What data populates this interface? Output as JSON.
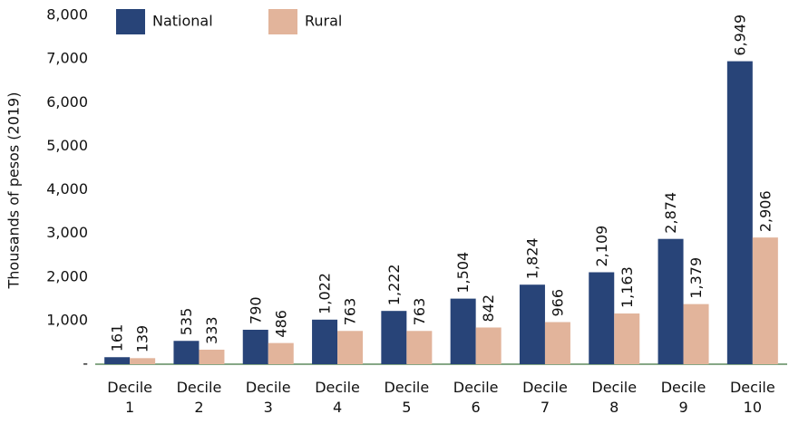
{
  "chart_data": {
    "type": "bar",
    "ylabel": "Thousands of pesos (2019)",
    "categories": [
      "Decile 1",
      "Decile 2",
      "Decile 3",
      "Decile 4",
      "Decile 5",
      "Decile 6",
      "Decile 7",
      "Decile 8",
      "Decile 9",
      "Decile 10"
    ],
    "series": [
      {
        "name": "National",
        "color": "#284478",
        "values": [
          161,
          535,
          790,
          1022,
          1222,
          1504,
          1824,
          2109,
          2874,
          6949
        ],
        "value_labels": [
          "161",
          "535",
          "790",
          "1,022",
          "1,222",
          "1,504",
          "1,824",
          "2,109",
          "2,874",
          "6,949"
        ]
      },
      {
        "name": "Rural",
        "color": "#e2b49b",
        "values": [
          139,
          333,
          486,
          763,
          763,
          842,
          966,
          1163,
          1379,
          2906
        ],
        "value_labels": [
          "139",
          "333",
          "486",
          "763",
          "763",
          "842",
          "966",
          "1,163",
          "1,379",
          "2,906"
        ]
      }
    ],
    "ylim": [
      0,
      8000
    ],
    "yticks": [
      {
        "value": 0,
        "label": "-"
      },
      {
        "value": 1000,
        "label": "1,000"
      },
      {
        "value": 2000,
        "label": "2,000"
      },
      {
        "value": 3000,
        "label": "3,000"
      },
      {
        "value": 4000,
        "label": "4,000"
      },
      {
        "value": 5000,
        "label": "5,000"
      },
      {
        "value": 6000,
        "label": "6,000"
      },
      {
        "value": 7000,
        "label": "7,000"
      },
      {
        "value": 8000,
        "label": "8,000"
      }
    ],
    "legend": "top-left"
  }
}
